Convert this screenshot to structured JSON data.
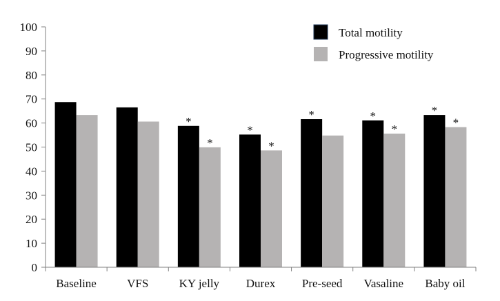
{
  "chart_data": {
    "type": "bar",
    "title": "",
    "xlabel": "",
    "ylabel": "",
    "ylim": [
      0,
      100
    ],
    "yticks": [
      0,
      10,
      20,
      30,
      40,
      50,
      60,
      70,
      80,
      90,
      100
    ],
    "grid": false,
    "legend_position": "top-right",
    "categories": [
      "Baseline",
      "VFS",
      "KY jelly",
      "Durex",
      "Pre-seed",
      "Vasaline",
      "Baby oil"
    ],
    "series": [
      {
        "name": "Total motility",
        "color": "#000000",
        "values": [
          68.7,
          66.5,
          58.8,
          55.2,
          61.6,
          61.1,
          63.3
        ],
        "significance": [
          "",
          "",
          "*",
          "*",
          "*",
          "*",
          "*"
        ]
      },
      {
        "name": "Progressive motility",
        "color": "#b5b3b3",
        "values": [
          63.3,
          60.6,
          49.9,
          48.6,
          54.8,
          55.6,
          58.3
        ],
        "significance": [
          "",
          "",
          "*",
          "*",
          "",
          "*",
          "*"
        ]
      }
    ]
  }
}
